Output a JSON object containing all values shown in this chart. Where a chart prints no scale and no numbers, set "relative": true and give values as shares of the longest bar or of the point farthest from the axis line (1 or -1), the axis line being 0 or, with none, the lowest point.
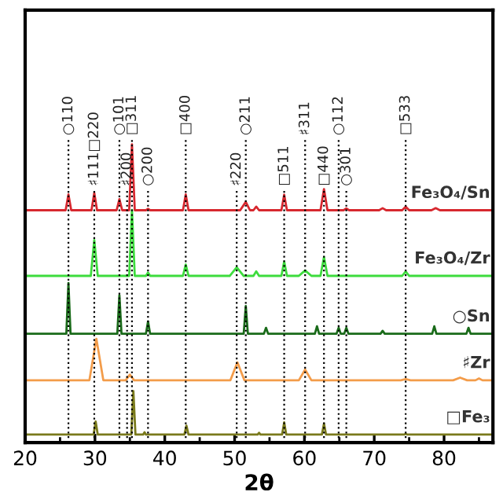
{
  "chart_data": {
    "type": "line",
    "relative": true,
    "xlabel": "2θ",
    "xlim": [
      20,
      87
    ],
    "xticks": [
      20,
      30,
      40,
      50,
      60,
      70,
      80,
      {
        "value": 25,
        "label": null
      },
      {
        "value": 35,
        "label": null
      },
      {
        "value": 45,
        "label": null
      },
      {
        "value": 55,
        "label": null
      },
      {
        "value": 65,
        "label": null
      },
      {
        "value": 75,
        "label": null
      },
      {
        "value": 85,
        "label": null
      }
    ],
    "grid": false,
    "legend": false,
    "marker": "none",
    "line_style": "solid",
    "series": [
      {
        "name": "Fe₃O₄/Sn",
        "color": "#d7282f",
        "x": [
          20,
          25.8,
          26.2,
          26.6,
          29.5,
          29.9,
          30.3,
          33.1,
          33.5,
          33.9,
          34.9,
          35.3,
          35.7,
          37.3,
          37.6,
          37.9,
          42.6,
          43.0,
          43.4,
          50.8,
          51.6,
          52.2,
          52.7,
          53.1,
          53.5,
          56.7,
          57.1,
          57.5,
          62.3,
          62.8,
          63.3,
          65.6,
          66.0,
          66.4,
          70.7,
          71.2,
          71.7,
          74.0,
          74.5,
          75.0,
          78.2,
          78.8,
          79.4,
          87
        ],
        "values": [
          0.779,
          0.779,
          0.832,
          0.779,
          0.779,
          0.837,
          0.779,
          0.779,
          0.816,
          0.779,
          0.779,
          1.0,
          0.779,
          0.779,
          0.784,
          0.779,
          0.779,
          0.832,
          0.779,
          0.779,
          0.807,
          0.779,
          0.779,
          0.791,
          0.779,
          0.779,
          0.831,
          0.779,
          0.779,
          0.85,
          0.779,
          0.779,
          0.785,
          0.779,
          0.779,
          0.786,
          0.779,
          0.779,
          0.791,
          0.779,
          0.779,
          0.786,
          0.779,
          0.779
        ]
      },
      {
        "name": "Fe₃O₄/Zr",
        "color": "#3ddc3d",
        "x": [
          20,
          29.4,
          29.9,
          30.4,
          34.9,
          35.3,
          35.7,
          37.3,
          37.6,
          37.9,
          42.6,
          43.0,
          43.4,
          49.3,
          50.3,
          51.3,
          52.7,
          53.1,
          53.5,
          56.7,
          57.1,
          57.5,
          59.2,
          60.1,
          61.0,
          62.3,
          62.8,
          63.3,
          74.0,
          74.5,
          75.0,
          87
        ],
        "values": [
          0.559,
          0.559,
          0.679,
          0.559,
          0.559,
          0.78,
          0.559,
          0.559,
          0.57,
          0.559,
          0.559,
          0.597,
          0.559,
          0.559,
          0.588,
          0.559,
          0.559,
          0.574,
          0.559,
          0.559,
          0.607,
          0.559,
          0.559,
          0.577,
          0.559,
          0.559,
          0.622,
          0.559,
          0.559,
          0.574,
          0.559,
          0.559
        ]
      },
      {
        "name": "○Sn",
        "color": "#1a6b1a",
        "x": [
          20,
          25.9,
          26.2,
          26.5,
          33.2,
          33.5,
          33.8,
          37.3,
          37.6,
          37.9,
          51.3,
          51.6,
          51.9,
          54.2,
          54.5,
          54.8,
          61.5,
          61.8,
          62.1,
          64.6,
          64.9,
          65.2,
          65.7,
          66.0,
          66.3,
          70.9,
          71.2,
          71.5,
          78.3,
          78.6,
          78.9,
          83.2,
          83.5,
          83.8,
          87
        ],
        "values": [
          0.365,
          0.365,
          0.535,
          0.365,
          0.365,
          0.494,
          0.365,
          0.365,
          0.406,
          0.365,
          0.365,
          0.458,
          0.365,
          0.365,
          0.385,
          0.365,
          0.365,
          0.39,
          0.365,
          0.365,
          0.385,
          0.365,
          0.365,
          0.385,
          0.365,
          0.365,
          0.375,
          0.365,
          0.365,
          0.39,
          0.365,
          0.365,
          0.385,
          0.365,
          0.365
        ]
      },
      {
        "name": "♯Zr",
        "color": "#f39c4a",
        "x": [
          20,
          29.2,
          30.2,
          31.2,
          34.4,
          35.0,
          35.6,
          49.4,
          50.4,
          51.4,
          59.2,
          60.1,
          61.0,
          73.8,
          74.5,
          75.2,
          81.3,
          82.3,
          83.3,
          84.5,
          85.0,
          85.5,
          87
        ],
        "values": [
          0.209,
          0.209,
          0.348,
          0.209,
          0.209,
          0.228,
          0.209,
          0.209,
          0.269,
          0.209,
          0.209,
          0.245,
          0.209,
          0.209,
          0.213,
          0.209,
          0.209,
          0.218,
          0.209,
          0.209,
          0.215,
          0.209,
          0.209
        ]
      },
      {
        "name": "□Fe₃",
        "color": "#7a7a1c",
        "x": [
          20,
          29.8,
          30.1,
          30.4,
          35.2,
          35.5,
          35.8,
          36.9,
          37.1,
          37.3,
          42.8,
          43.1,
          43.4,
          53.3,
          53.5,
          53.7,
          56.8,
          57.1,
          57.4,
          62.5,
          62.8,
          63.1,
          74.3,
          74.5,
          74.7,
          87
        ],
        "values": [
          0.027,
          0.027,
          0.071,
          0.027,
          0.027,
          0.173,
          0.027,
          0.027,
          0.035,
          0.027,
          0.027,
          0.057,
          0.027,
          0.027,
          0.033,
          0.027,
          0.027,
          0.068,
          0.027,
          0.027,
          0.064,
          0.027,
          0.027,
          0.03,
          0.027,
          0.027
        ]
      }
    ],
    "ref_lines": [
      {
        "axis": "x",
        "value": 26.2,
        "label": "○110",
        "color": "#000000",
        "line_style": "dotted"
      },
      {
        "axis": "x",
        "value": 29.9,
        "label": "♯111□220",
        "color": "#000000",
        "line_style": "dotted"
      },
      {
        "axis": "x",
        "value": 33.5,
        "label": "○101",
        "color": "#000000",
        "line_style": "dotted"
      },
      {
        "axis": "x",
        "value": 34.6,
        "label": "♯200",
        "color": "#000000",
        "line_style": "dotted"
      },
      {
        "axis": "x",
        "value": 35.3,
        "label": "□311",
        "color": "#000000",
        "line_style": "dotted"
      },
      {
        "axis": "x",
        "value": 37.6,
        "label": "○200",
        "color": "#000000",
        "line_style": "dotted"
      },
      {
        "axis": "x",
        "value": 43.0,
        "label": "□400",
        "color": "#000000",
        "line_style": "dotted"
      },
      {
        "axis": "x",
        "value": 50.3,
        "label": "♯220",
        "color": "#000000",
        "line_style": "dotted"
      },
      {
        "axis": "x",
        "value": 51.6,
        "label": "○211",
        "color": "#000000",
        "line_style": "dotted"
      },
      {
        "axis": "x",
        "value": 57.1,
        "label": "□511",
        "color": "#000000",
        "line_style": "dotted"
      },
      {
        "axis": "x",
        "value": 60.1,
        "label": "♯311",
        "color": "#000000",
        "line_style": "dotted"
      },
      {
        "axis": "x",
        "value": 62.8,
        "label": "□440",
        "color": "#000000",
        "line_style": "dotted"
      },
      {
        "axis": "x",
        "value": 64.9,
        "label": "○112",
        "color": "#000000",
        "line_style": "dotted"
      },
      {
        "axis": "x",
        "value": 66.0,
        "label": "○301",
        "color": "#000000",
        "line_style": "dotted"
      },
      {
        "axis": "x",
        "value": 74.5,
        "label": "□533",
        "color": "#000000",
        "line_style": "dotted"
      }
    ]
  }
}
